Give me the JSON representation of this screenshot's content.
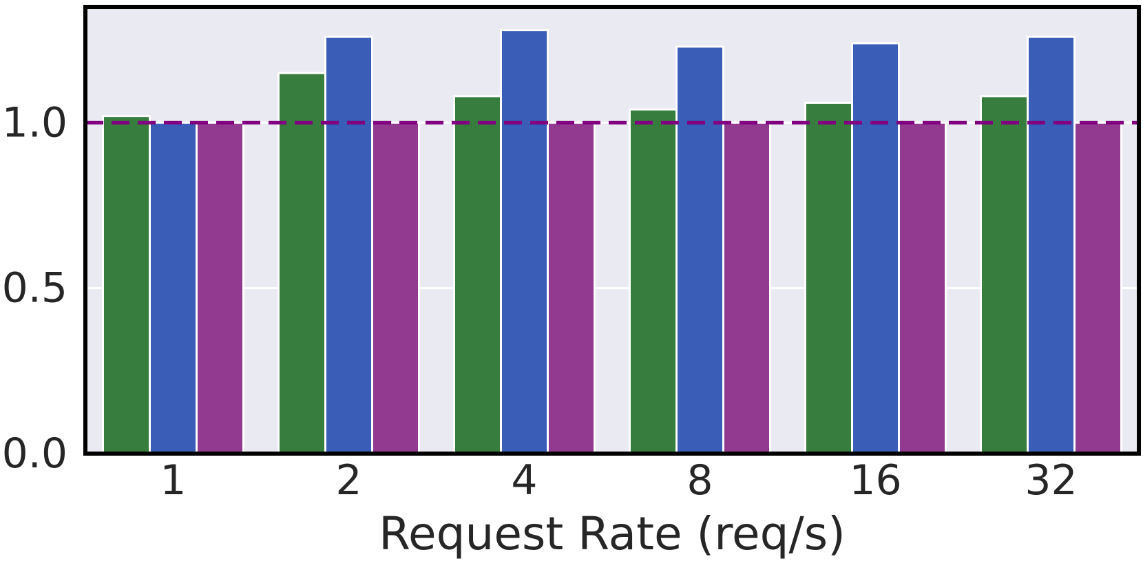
{
  "chart_data": {
    "type": "bar",
    "title": "",
    "xlabel": "Request Rate (req/s)",
    "ylabel": "",
    "categories": [
      "1",
      "2",
      "4",
      "8",
      "16",
      "32"
    ],
    "series": [
      {
        "color": "#367d3e",
        "values": [
          1.02,
          1.15,
          1.08,
          1.04,
          1.06,
          1.08
        ]
      },
      {
        "color": "#3a5db7",
        "values": [
          1.0,
          1.26,
          1.28,
          1.23,
          1.24,
          1.26
        ]
      },
      {
        "color": "#923990",
        "values": [
          1.0,
          1.0,
          1.0,
          1.0,
          1.0,
          1.0
        ]
      }
    ],
    "ylim": [
      0,
      1.35
    ],
    "yticks": [
      "0.0",
      "0.5",
      "1.0"
    ],
    "ytick_values": [
      0.0,
      0.5,
      1.0
    ],
    "reference_line": {
      "value": 1.0,
      "color": "#800080",
      "style": "dashed"
    },
    "grid": true,
    "background": "#eaeaf2",
    "legend": "none"
  }
}
